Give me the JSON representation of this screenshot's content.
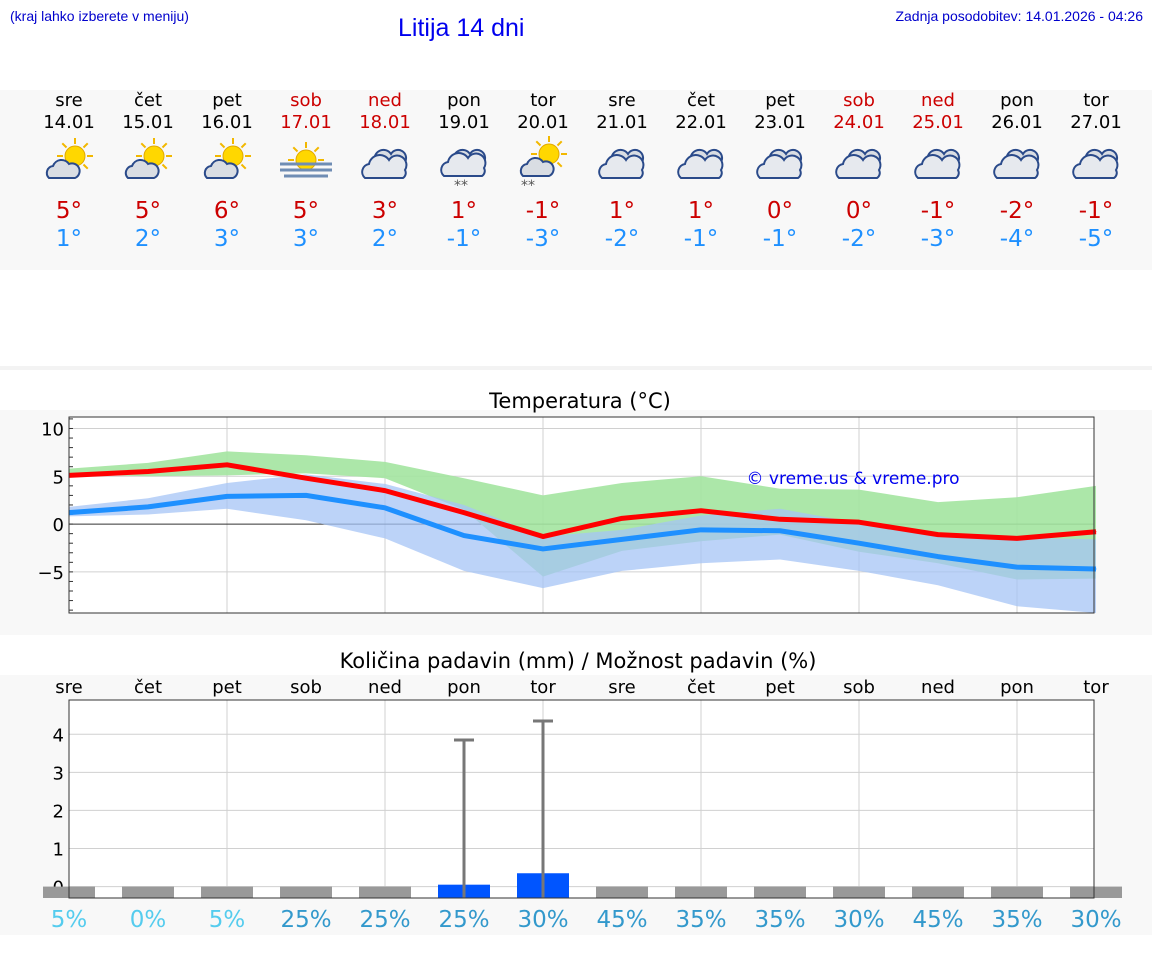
{
  "header": {
    "menu_hint": "(kraj lahko izberete v meniju)",
    "title": "Litija 14 dni",
    "updated": "Zadnja posodobitev: 14.01.2026 - 04:26"
  },
  "days": [
    {
      "name": "sre",
      "date": "14.01",
      "max": "5°",
      "min": "1°",
      "weekend": false,
      "icon": "partly-sunny-icon"
    },
    {
      "name": "čet",
      "date": "15.01",
      "max": "5°",
      "min": "2°",
      "weekend": false,
      "icon": "partly-sunny-icon"
    },
    {
      "name": "pet",
      "date": "16.01",
      "max": "6°",
      "min": "3°",
      "weekend": false,
      "icon": "partly-sunny-icon"
    },
    {
      "name": "sob",
      "date": "17.01",
      "max": "5°",
      "min": "3°",
      "weekend": true,
      "icon": "sun-fog-icon"
    },
    {
      "name": "ned",
      "date": "18.01",
      "max": "3°",
      "min": "2°",
      "weekend": true,
      "icon": "cloudy-icon"
    },
    {
      "name": "pon",
      "date": "19.01",
      "max": "1°",
      "min": "-1°",
      "weekend": false,
      "icon": "cloudy-snow-icon"
    },
    {
      "name": "tor",
      "date": "20.01",
      "max": "-1°",
      "min": "-3°",
      "weekend": false,
      "icon": "sun-cloud-snow-icon"
    },
    {
      "name": "sre",
      "date": "21.01",
      "max": "1°",
      "min": "-2°",
      "weekend": false,
      "icon": "cloudy-icon"
    },
    {
      "name": "čet",
      "date": "22.01",
      "max": "1°",
      "min": "-1°",
      "weekend": false,
      "icon": "cloudy-icon"
    },
    {
      "name": "pet",
      "date": "23.01",
      "max": "0°",
      "min": "-1°",
      "weekend": false,
      "icon": "cloudy-icon"
    },
    {
      "name": "sob",
      "date": "24.01",
      "max": "0°",
      "min": "-2°",
      "weekend": true,
      "icon": "cloudy-icon"
    },
    {
      "name": "ned",
      "date": "25.01",
      "max": "-1°",
      "min": "-3°",
      "weekend": true,
      "icon": "cloudy-icon"
    },
    {
      "name": "pon",
      "date": "26.01",
      "max": "-2°",
      "min": "-4°",
      "weekend": false,
      "icon": "cloudy-icon"
    },
    {
      "name": "tor",
      "date": "27.01",
      "max": "-1°",
      "min": "-5°",
      "weekend": false,
      "icon": "cloudy-icon"
    }
  ],
  "chart_data": [
    {
      "type": "line",
      "title": "Temperatura (°C)",
      "watermark": "© vreme.us & vreme.pro",
      "x_count": 14,
      "ylim": [
        -9.3,
        11.2
      ],
      "yticks": [
        10,
        5,
        0,
        -5
      ],
      "ytick_labels": [
        "10",
        "5",
        "0",
        "−5"
      ],
      "series": [
        {
          "name": "max",
          "color": "#ff0000",
          "values": [
            5.1,
            5.5,
            6.2,
            4.8,
            3.5,
            1.2,
            -1.3,
            0.6,
            1.4,
            0.5,
            0.2,
            -1.1,
            -1.5,
            -0.8
          ]
        },
        {
          "name": "min",
          "color": "#1e90ff",
          "values": [
            1.2,
            1.8,
            2.9,
            3.0,
            1.7,
            -1.2,
            -2.6,
            -1.6,
            -0.6,
            -0.7,
            -2.0,
            -3.4,
            -4.5,
            -4.7
          ]
        }
      ],
      "max_band": {
        "color": "#a3e4a0",
        "upper": [
          5.8,
          6.4,
          7.6,
          7.2,
          6.5,
          4.8,
          3.0,
          4.3,
          5.0,
          3.7,
          3.6,
          2.3,
          2.8,
          4.0
        ],
        "lower": [
          5.2,
          5.0,
          5.1,
          5.3,
          4.8,
          1.5,
          -5.5,
          -2.8,
          -1.8,
          -1.1,
          -2.9,
          -4.1,
          -5.8,
          -5.7
        ]
      },
      "min_band": {
        "color": "#a6c4f5",
        "upper": [
          1.8,
          2.7,
          4.3,
          5.2,
          4.2,
          2.0,
          -1.3,
          -0.6,
          0.9,
          1.6,
          0.1,
          -0.9,
          -1.4,
          -1.6
        ],
        "lower": [
          0.8,
          1.0,
          1.6,
          0.4,
          -1.5,
          -4.9,
          -6.7,
          -4.9,
          -4.1,
          -3.7,
          -4.9,
          -6.4,
          -8.6,
          -9.3
        ]
      }
    },
    {
      "type": "bar",
      "title": "Količina padavin (mm) / Možnost padavin (%)",
      "categories": [
        "sre",
        "čet",
        "pet",
        "sob",
        "ned",
        "pon",
        "tor",
        "sre",
        "čet",
        "pet",
        "sob",
        "ned",
        "pon",
        "tor"
      ],
      "ylim": [
        -0.3,
        4.9
      ],
      "yticks": [
        4,
        3,
        2,
        1,
        0
      ],
      "values": [
        0,
        0,
        0,
        0,
        0,
        0.05,
        0.35,
        0,
        0,
        0,
        0,
        0,
        0,
        0
      ],
      "error_max": [
        null,
        null,
        null,
        null,
        null,
        3.85,
        4.35,
        null,
        null,
        null,
        null,
        null,
        null,
        null
      ],
      "bar_color": "#0055ff",
      "probability": [
        "5%",
        "0%",
        "5%",
        "25%",
        "25%",
        "25%",
        "30%",
        "45%",
        "35%",
        "35%",
        "30%",
        "45%",
        "35%",
        "30%"
      ],
      "probability_colors": [
        "#55ccee",
        "#55ccee",
        "#55ccee",
        "#3399cc",
        "#3399cc",
        "#3399cc",
        "#3399cc",
        "#3399cc",
        "#3399cc",
        "#3399cc",
        "#3399cc",
        "#3399cc",
        "#3399cc",
        "#3399cc"
      ]
    }
  ]
}
